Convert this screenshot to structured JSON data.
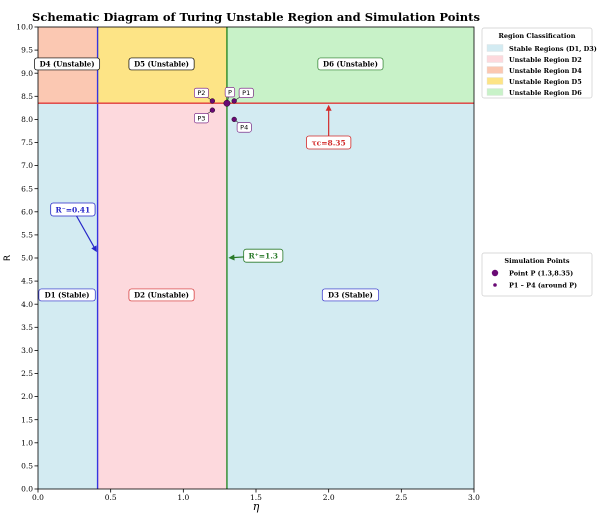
{
  "chart_data": {
    "type": "scatter",
    "title": "Schematic Diagram of Turing Unstable Region and Simulation Points",
    "xlabel": "η",
    "ylabel": "R",
    "xlim": [
      0.0,
      3.0
    ],
    "ylim": [
      0.0,
      10.0
    ],
    "xticks": [
      "0.0",
      "0.5",
      "1.0",
      "1.5",
      "2.0",
      "2.5",
      "3.0"
    ],
    "yticks": [
      "0.0",
      "0.5",
      "1.0",
      "1.5",
      "2.0",
      "2.5",
      "3.0",
      "3.5",
      "4.0",
      "4.5",
      "5.0",
      "5.5",
      "6.0",
      "6.5",
      "7.0",
      "7.5",
      "8.0",
      "8.5",
      "9.0",
      "9.5",
      "10.0"
    ],
    "grid": false,
    "thresholds": {
      "r_minus": 0.41,
      "r_plus": 1.3,
      "tau_c": 8.35
    },
    "regions": [
      {
        "key": "D1",
        "label": "D1 (Stable)",
        "x": [
          0.0,
          0.41
        ],
        "y": [
          0.0,
          8.35
        ],
        "color": "#d3ebf2",
        "label_at": [
          0.2,
          4.2
        ],
        "border": "#2727c8"
      },
      {
        "key": "D2",
        "label": "D2 (Unstable)",
        "x": [
          0.41,
          1.3
        ],
        "y": [
          0.0,
          8.35
        ],
        "color": "#fdd9dd",
        "label_at": [
          0.85,
          4.2
        ],
        "border": "#d22a2a"
      },
      {
        "key": "D3",
        "label": "D3 (Stable)",
        "x": [
          1.3,
          3.0
        ],
        "y": [
          0.0,
          8.35
        ],
        "color": "#d3ebf2",
        "label_at": [
          2.15,
          4.2
        ],
        "border": "#2727c8"
      },
      {
        "key": "D4",
        "label": "D4 (Unstable)",
        "x": [
          0.0,
          0.41
        ],
        "y": [
          8.35,
          10.0
        ],
        "color": "#fbc8b2",
        "label_at": [
          0.2,
          9.2
        ],
        "border": "#000000"
      },
      {
        "key": "D5",
        "label": "D5 (Unstable)",
        "x": [
          0.41,
          1.3
        ],
        "y": [
          8.35,
          10.0
        ],
        "color": "#fde486",
        "label_at": [
          0.85,
          9.2
        ],
        "border": "#000000"
      },
      {
        "key": "D6",
        "label": "D6 (Unstable)",
        "x": [
          1.3,
          3.0
        ],
        "y": [
          8.35,
          10.0
        ],
        "color": "#c8f2c8",
        "label_at": [
          2.15,
          9.2
        ],
        "border": "#2a7a2a"
      }
    ],
    "lines": [
      {
        "orientation": "vertical",
        "value": 0.41,
        "color": "#3535e0"
      },
      {
        "orientation": "vertical",
        "value": 1.3,
        "color": "#2a8a2a"
      },
      {
        "orientation": "horizontal",
        "value": 8.35,
        "color": "#e03a3a"
      }
    ],
    "annotations": [
      {
        "text": "R⁻=0.41",
        "at": [
          0.41,
          5.1
        ],
        "text_at": [
          0.24,
          6.05
        ],
        "color": "#2727c8"
      },
      {
        "text": "R⁺=1.3",
        "at": [
          1.3,
          5.0
        ],
        "text_at": [
          1.55,
          5.05
        ],
        "color": "#2a7a2a"
      },
      {
        "text": "τc=8.35",
        "at": [
          2.0,
          8.35
        ],
        "text_at": [
          2.0,
          7.5
        ],
        "color": "#d22a2a"
      }
    ],
    "series": [
      {
        "name": "Point P (1.3,8.35)",
        "color": "#6a0a75",
        "points": [
          {
            "label": "P",
            "x": 1.3,
            "y": 8.35
          }
        ]
      },
      {
        "name": "P1 – P4 (around P)",
        "color": "#6a0a75",
        "points": [
          {
            "label": "P1",
            "x": 1.35,
            "y": 8.4
          },
          {
            "label": "P2",
            "x": 1.2,
            "y": 8.4
          },
          {
            "label": "P3",
            "x": 1.2,
            "y": 8.2
          },
          {
            "label": "P4",
            "x": 1.35,
            "y": 8.0
          }
        ]
      }
    ],
    "legends": [
      {
        "title": "Region Classification",
        "placement": "upper-right-outside",
        "entries": [
          {
            "label": "Stable Regions (D1, D3)",
            "color": "#d3ebf2"
          },
          {
            "label": "Unstable Region D2",
            "color": "#fdd9dd"
          },
          {
            "label": "Unstable Region D4",
            "color": "#fbc8b2"
          },
          {
            "label": "Unstable Region D5",
            "color": "#fde486"
          },
          {
            "label": "Unstable Region D6",
            "color": "#c8f2c8"
          }
        ]
      },
      {
        "title": "Simulation Points",
        "placement": "right-outside",
        "entries": [
          {
            "label": "Point P (1.3,8.35)",
            "color": "#6a0a75",
            "marker": "large"
          },
          {
            "label": "P1 – P4 (around P)",
            "color": "#6a0a75",
            "marker": "small"
          }
        ]
      }
    ]
  }
}
